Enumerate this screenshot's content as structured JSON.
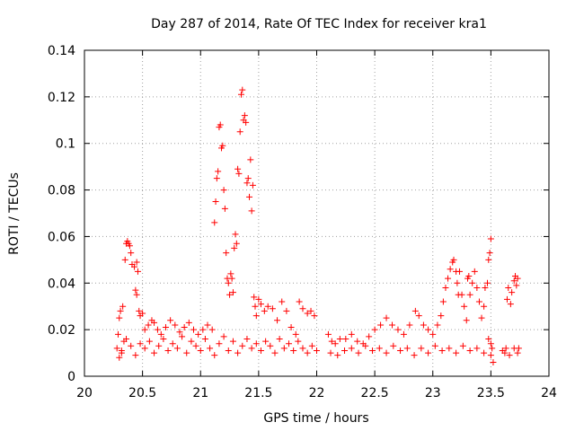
{
  "chart_data": {
    "type": "scatter",
    "title": "Day 287 of 2014, Rate Of TEC Index for receiver kra1",
    "xlabel": "GPS time / hours",
    "ylabel": "ROTI / TECUs",
    "xlim": [
      20,
      24
    ],
    "ylim": [
      0,
      0.14
    ],
    "xticks": [
      20,
      20.5,
      21,
      21.5,
      22,
      22.5,
      23,
      23.5,
      24
    ],
    "yticks": [
      0,
      0.02,
      0.04,
      0.06,
      0.08,
      0.1,
      0.12,
      0.14
    ],
    "xtick_labels": [
      "20",
      "20.5",
      "21",
      "21.5",
      "22",
      "22.5",
      "23",
      "23.5",
      "24"
    ],
    "ytick_labels": [
      "0",
      "0.02",
      "0.04",
      "0.06",
      "0.08",
      "0.1",
      "0.12",
      "0.14"
    ],
    "grid": true,
    "marker": "+",
    "color": "#ff0000",
    "series": [
      {
        "name": "ROTI",
        "points": [
          [
            20.28,
            0.012
          ],
          [
            20.29,
            0.018
          ],
          [
            20.3,
            0.025
          ],
          [
            20.31,
            0.028
          ],
          [
            20.32,
            0.01
          ],
          [
            20.33,
            0.03
          ],
          [
            20.34,
            0.015
          ],
          [
            20.35,
            0.05
          ],
          [
            20.36,
            0.057
          ],
          [
            20.37,
            0.058
          ],
          [
            20.38,
            0.057
          ],
          [
            20.39,
            0.056
          ],
          [
            20.4,
            0.053
          ],
          [
            20.41,
            0.048
          ],
          [
            20.43,
            0.047
          ],
          [
            20.45,
            0.049
          ],
          [
            20.44,
            0.037
          ],
          [
            20.45,
            0.035
          ],
          [
            20.46,
            0.045
          ],
          [
            20.47,
            0.028
          ],
          [
            20.48,
            0.026
          ],
          [
            20.5,
            0.027
          ],
          [
            20.52,
            0.02
          ],
          [
            20.55,
            0.022
          ],
          [
            20.58,
            0.024
          ],
          [
            20.6,
            0.023
          ],
          [
            20.63,
            0.02
          ],
          [
            20.66,
            0.018
          ],
          [
            20.7,
            0.021
          ],
          [
            20.74,
            0.024
          ],
          [
            20.78,
            0.022
          ],
          [
            20.82,
            0.019
          ],
          [
            20.86,
            0.021
          ],
          [
            20.9,
            0.023
          ],
          [
            20.94,
            0.02
          ],
          [
            20.98,
            0.018
          ],
          [
            21.02,
            0.02
          ],
          [
            21.06,
            0.022
          ],
          [
            21.1,
            0.02
          ],
          [
            21.12,
            0.066
          ],
          [
            21.13,
            0.075
          ],
          [
            21.14,
            0.085
          ],
          [
            21.15,
            0.088
          ],
          [
            21.16,
            0.107
          ],
          [
            21.17,
            0.108
          ],
          [
            21.18,
            0.098
          ],
          [
            21.19,
            0.099
          ],
          [
            21.2,
            0.08
          ],
          [
            21.21,
            0.072
          ],
          [
            21.22,
            0.053
          ],
          [
            21.23,
            0.042
          ],
          [
            21.24,
            0.04
          ],
          [
            21.25,
            0.035
          ],
          [
            21.26,
            0.044
          ],
          [
            21.27,
            0.042
          ],
          [
            21.28,
            0.036
          ],
          [
            21.29,
            0.055
          ],
          [
            21.3,
            0.061
          ],
          [
            21.31,
            0.057
          ],
          [
            21.32,
            0.089
          ],
          [
            21.33,
            0.087
          ],
          [
            21.34,
            0.105
          ],
          [
            21.35,
            0.121
          ],
          [
            21.36,
            0.123
          ],
          [
            21.37,
            0.11
          ],
          [
            21.38,
            0.112
          ],
          [
            21.39,
            0.109
          ],
          [
            21.4,
            0.083
          ],
          [
            21.41,
            0.085
          ],
          [
            21.42,
            0.077
          ],
          [
            21.43,
            0.093
          ],
          [
            21.44,
            0.071
          ],
          [
            21.45,
            0.082
          ],
          [
            21.46,
            0.034
          ],
          [
            21.47,
            0.03
          ],
          [
            21.48,
            0.026
          ],
          [
            21.5,
            0.033
          ],
          [
            21.52,
            0.031
          ],
          [
            21.55,
            0.028
          ],
          [
            21.58,
            0.03
          ],
          [
            21.62,
            0.029
          ],
          [
            21.66,
            0.024
          ],
          [
            21.7,
            0.032
          ],
          [
            21.74,
            0.028
          ],
          [
            21.78,
            0.021
          ],
          [
            21.82,
            0.018
          ],
          [
            21.85,
            0.032
          ],
          [
            21.88,
            0.029
          ],
          [
            21.92,
            0.027
          ],
          [
            21.95,
            0.028
          ],
          [
            21.98,
            0.026
          ],
          [
            22.1,
            0.018
          ],
          [
            22.13,
            0.015
          ],
          [
            22.16,
            0.014
          ],
          [
            22.2,
            0.016
          ],
          [
            22.25,
            0.016
          ],
          [
            22.3,
            0.018
          ],
          [
            22.35,
            0.015
          ],
          [
            22.4,
            0.014
          ],
          [
            22.45,
            0.017
          ],
          [
            22.5,
            0.02
          ],
          [
            22.55,
            0.022
          ],
          [
            22.6,
            0.025
          ],
          [
            22.65,
            0.022
          ],
          [
            22.7,
            0.02
          ],
          [
            22.75,
            0.018
          ],
          [
            22.8,
            0.022
          ],
          [
            22.85,
            0.028
          ],
          [
            22.88,
            0.026
          ],
          [
            22.92,
            0.022
          ],
          [
            22.96,
            0.02
          ],
          [
            23.0,
            0.018
          ],
          [
            23.04,
            0.022
          ],
          [
            23.07,
            0.026
          ],
          [
            23.09,
            0.032
          ],
          [
            23.11,
            0.038
          ],
          [
            23.13,
            0.042
          ],
          [
            23.15,
            0.046
          ],
          [
            23.17,
            0.049
          ],
          [
            23.18,
            0.05
          ],
          [
            23.2,
            0.045
          ],
          [
            23.21,
            0.04
          ],
          [
            23.22,
            0.035
          ],
          [
            23.23,
            0.045
          ],
          [
            23.25,
            0.035
          ],
          [
            23.27,
            0.03
          ],
          [
            23.29,
            0.024
          ],
          [
            23.3,
            0.042
          ],
          [
            23.31,
            0.043
          ],
          [
            23.32,
            0.035
          ],
          [
            23.34,
            0.04
          ],
          [
            23.36,
            0.045
          ],
          [
            23.38,
            0.038
          ],
          [
            23.4,
            0.032
          ],
          [
            23.42,
            0.025
          ],
          [
            23.44,
            0.03
          ],
          [
            23.45,
            0.038
          ],
          [
            23.47,
            0.04
          ],
          [
            23.48,
            0.05
          ],
          [
            23.49,
            0.053
          ],
          [
            23.5,
            0.059
          ],
          [
            23.51,
            0.012
          ],
          [
            23.52,
            0.006
          ],
          [
            23.5,
            0.014
          ],
          [
            23.48,
            0.016
          ],
          [
            23.6,
            0.011
          ],
          [
            23.62,
            0.01
          ],
          [
            23.64,
            0.033
          ],
          [
            23.65,
            0.038
          ],
          [
            23.67,
            0.031
          ],
          [
            23.68,
            0.036
          ],
          [
            23.7,
            0.041
          ],
          [
            23.71,
            0.043
          ],
          [
            23.72,
            0.039
          ],
          [
            23.73,
            0.042
          ],
          [
            23.74,
            0.012
          ],
          [
            23.73,
            0.01
          ],
          [
            23.7,
            0.012
          ],
          [
            23.66,
            0.009
          ],
          [
            23.63,
            0.012
          ],
          [
            20.3,
            0.008
          ],
          [
            20.32,
            0.011
          ],
          [
            20.36,
            0.016
          ],
          [
            20.4,
            0.013
          ],
          [
            20.44,
            0.009
          ],
          [
            20.48,
            0.014
          ],
          [
            20.52,
            0.012
          ],
          [
            20.56,
            0.015
          ],
          [
            20.6,
            0.01
          ],
          [
            20.64,
            0.013
          ],
          [
            20.68,
            0.016
          ],
          [
            20.72,
            0.011
          ],
          [
            20.76,
            0.014
          ],
          [
            20.8,
            0.012
          ],
          [
            20.84,
            0.017
          ],
          [
            20.88,
            0.01
          ],
          [
            20.92,
            0.015
          ],
          [
            20.96,
            0.013
          ],
          [
            21.0,
            0.011
          ],
          [
            21.04,
            0.016
          ],
          [
            21.08,
            0.012
          ],
          [
            21.12,
            0.009
          ],
          [
            21.16,
            0.014
          ],
          [
            21.2,
            0.017
          ],
          [
            21.24,
            0.011
          ],
          [
            21.28,
            0.015
          ],
          [
            21.32,
            0.01
          ],
          [
            21.36,
            0.013
          ],
          [
            21.4,
            0.016
          ],
          [
            21.44,
            0.012
          ],
          [
            21.48,
            0.014
          ],
          [
            21.52,
            0.011
          ],
          [
            21.56,
            0.015
          ],
          [
            21.6,
            0.013
          ],
          [
            21.64,
            0.01
          ],
          [
            21.68,
            0.016
          ],
          [
            21.72,
            0.012
          ],
          [
            21.76,
            0.014
          ],
          [
            21.8,
            0.011
          ],
          [
            21.84,
            0.015
          ],
          [
            21.88,
            0.012
          ],
          [
            21.92,
            0.01
          ],
          [
            21.96,
            0.013
          ],
          [
            22.0,
            0.011
          ],
          [
            22.12,
            0.01
          ],
          [
            22.18,
            0.009
          ],
          [
            22.24,
            0.011
          ],
          [
            22.3,
            0.012
          ],
          [
            22.36,
            0.01
          ],
          [
            22.42,
            0.013
          ],
          [
            22.48,
            0.011
          ],
          [
            22.54,
            0.012
          ],
          [
            22.6,
            0.01
          ],
          [
            22.66,
            0.013
          ],
          [
            22.72,
            0.011
          ],
          [
            22.78,
            0.012
          ],
          [
            22.84,
            0.009
          ],
          [
            22.9,
            0.012
          ],
          [
            22.96,
            0.01
          ],
          [
            23.02,
            0.013
          ],
          [
            23.08,
            0.011
          ],
          [
            23.14,
            0.012
          ],
          [
            23.2,
            0.01
          ],
          [
            23.26,
            0.013
          ],
          [
            23.32,
            0.011
          ],
          [
            23.38,
            0.012
          ],
          [
            23.44,
            0.01
          ],
          [
            23.5,
            0.009
          ]
        ]
      }
    ]
  }
}
